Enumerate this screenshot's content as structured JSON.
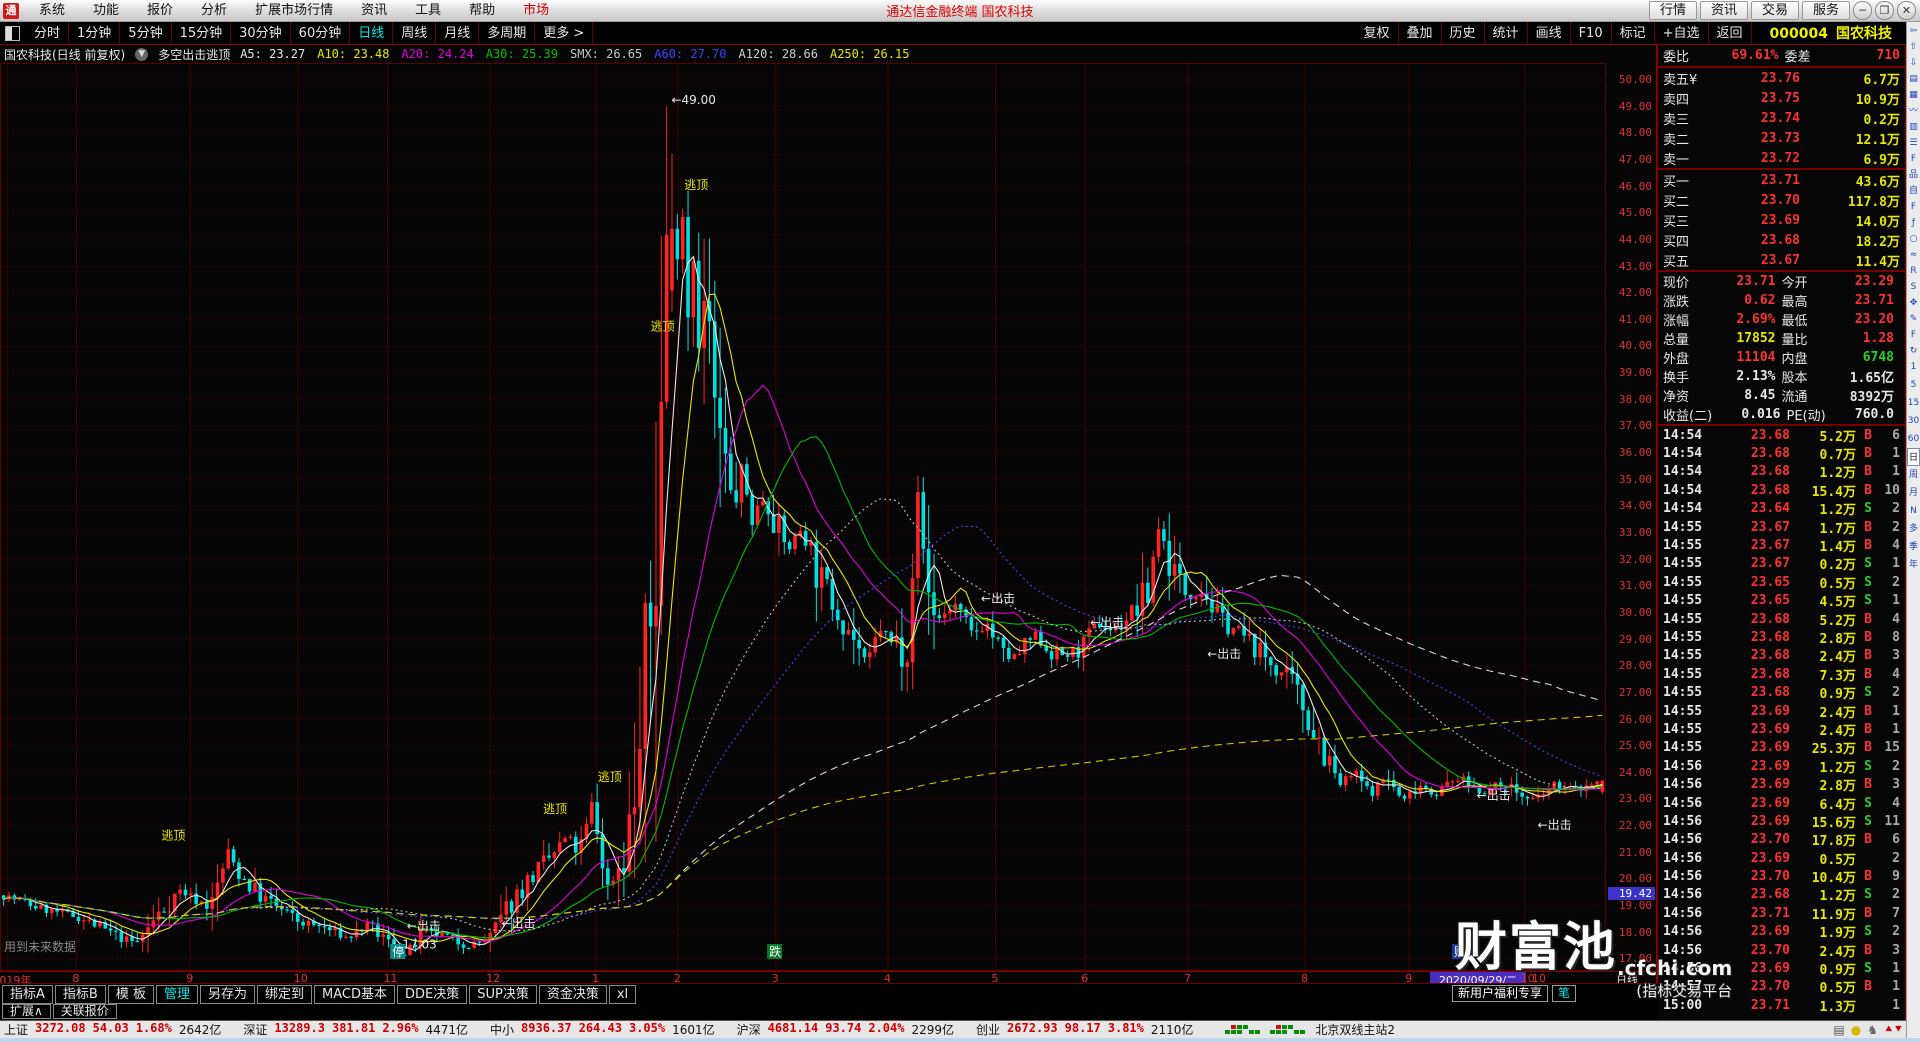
{
  "titlebar": {
    "logo": "通",
    "menus": [
      "系统",
      "功能",
      "报价",
      "分析",
      "扩展市场行情",
      "资讯",
      "工具",
      "帮助"
    ],
    "market_menu": "市场",
    "title": "通达信金融终端 国农科技",
    "right_buttons": [
      "行情",
      "资讯",
      "交易",
      "服务"
    ],
    "window_buttons": [
      "─",
      "❐",
      "✕"
    ]
  },
  "toolbar2": {
    "periods": [
      "分时",
      "1分钟",
      "5分钟",
      "15分钟",
      "30分钟",
      "60分钟",
      "日线",
      "周线",
      "月线",
      "多周期",
      "更多 >"
    ],
    "active_period": "日线",
    "right_items": [
      "复权",
      "叠加",
      "历史",
      "统计",
      "画线",
      "F10",
      "标记",
      "+自选",
      "返回"
    ],
    "stock_code": "000004",
    "stock_name": "国农科技"
  },
  "chart_header": {
    "title": "国农科技(日线 前复权)",
    "indicator_name": "多空出击逃顶",
    "values": [
      {
        "name": "A5",
        "value": "23.27",
        "color": "#e8e8e8"
      },
      {
        "name": "A10",
        "value": "23.48",
        "color": "#e8e800"
      },
      {
        "name": "A20",
        "value": "24.24",
        "color": "#e000e0"
      },
      {
        "name": "A30",
        "value": "25.39",
        "color": "#00c000"
      },
      {
        "name": "SMX",
        "value": "26.65",
        "color": "#c8c8c8"
      },
      {
        "name": "A60",
        "value": "27.70",
        "color": "#4040ff"
      },
      {
        "name": "A120",
        "value": "28.66",
        "color": "#d0d0d0"
      },
      {
        "name": "A250",
        "value": "26.15",
        "color": "#e8e800"
      }
    ]
  },
  "chart_data": {
    "type": "candlestick",
    "title": "国农科技 000004 日线 前复权",
    "ylim": [
      17.0,
      50.0
    ],
    "y_step": 1.0,
    "axis_highlight": "19.42",
    "n_candles": 300,
    "up_color": "#ff2222",
    "down_color": "#00e0e0",
    "months": [
      {
        "label": "2019年",
        "f": 0.004
      },
      {
        "label": "8",
        "f": 0.047
      },
      {
        "label": "9",
        "f": 0.118
      },
      {
        "label": "10",
        "f": 0.185
      },
      {
        "label": "11",
        "f": 0.241
      },
      {
        "label": "12",
        "f": 0.305
      },
      {
        "label": "1",
        "f": 0.371
      },
      {
        "label": "2",
        "f": 0.422
      },
      {
        "label": "3",
        "f": 0.483
      },
      {
        "label": "4",
        "f": 0.553
      },
      {
        "label": "5",
        "f": 0.62
      },
      {
        "label": "6",
        "f": 0.676
      },
      {
        "label": "7",
        "f": 0.74
      },
      {
        "label": "8",
        "f": 0.813
      },
      {
        "label": "9",
        "f": 0.878
      },
      {
        "label": "10",
        "f": 0.95
      }
    ],
    "date_box": "2020/09/29/二",
    "after_date": "10",
    "period_label": "日线",
    "key_prices": {
      "peak": 49.0,
      "low": 17.03,
      "last_close": 23.71,
      "open": 23.29,
      "high": 23.71,
      "low_day": 23.2
    },
    "anchors": [
      [
        0.0,
        19.4
      ],
      [
        0.024,
        18.9
      ],
      [
        0.047,
        18.6
      ],
      [
        0.07,
        17.9
      ],
      [
        0.083,
        17.6
      ],
      [
        0.1,
        18.9
      ],
      [
        0.11,
        19.6
      ],
      [
        0.118,
        19.3
      ],
      [
        0.13,
        19.0
      ],
      [
        0.14,
        21.0
      ],
      [
        0.148,
        20.2
      ],
      [
        0.16,
        19.4
      ],
      [
        0.17,
        19.0
      ],
      [
        0.185,
        18.4
      ],
      [
        0.2,
        18.2
      ],
      [
        0.215,
        17.8
      ],
      [
        0.228,
        18.3
      ],
      [
        0.241,
        17.6
      ],
      [
        0.252,
        17.1
      ],
      [
        0.262,
        18.0
      ],
      [
        0.275,
        17.9
      ],
      [
        0.29,
        17.5
      ],
      [
        0.305,
        17.8
      ],
      [
        0.318,
        19.2
      ],
      [
        0.33,
        20.1
      ],
      [
        0.342,
        20.8
      ],
      [
        0.352,
        21.6
      ],
      [
        0.36,
        21.0
      ],
      [
        0.368,
        22.8
      ],
      [
        0.374,
        21.0
      ],
      [
        0.378,
        19.6
      ],
      [
        0.384,
        20.4
      ],
      [
        0.39,
        21.5
      ],
      [
        0.396,
        23.5
      ],
      [
        0.402,
        27.5
      ],
      [
        0.408,
        33.0
      ],
      [
        0.412,
        38.5
      ],
      [
        0.416,
        44.0
      ],
      [
        0.42,
        43.0
      ],
      [
        0.424,
        45.8
      ],
      [
        0.428,
        41.5
      ],
      [
        0.432,
        44.0
      ],
      [
        0.436,
        39.5
      ],
      [
        0.44,
        42.5
      ],
      [
        0.444,
        37.5
      ],
      [
        0.45,
        36.0
      ],
      [
        0.456,
        34.0
      ],
      [
        0.462,
        35.3
      ],
      [
        0.468,
        33.5
      ],
      [
        0.475,
        34.3
      ],
      [
        0.482,
        33.6
      ],
      [
        0.49,
        32.3
      ],
      [
        0.5,
        33.3
      ],
      [
        0.51,
        31.3
      ],
      [
        0.52,
        30.3
      ],
      [
        0.53,
        29.3
      ],
      [
        0.54,
        28.0
      ],
      [
        0.548,
        29.5
      ],
      [
        0.556,
        28.8
      ],
      [
        0.565,
        29.3
      ],
      [
        0.572,
        34.3
      ],
      [
        0.578,
        30.8
      ],
      [
        0.585,
        29.8
      ],
      [
        0.595,
        30.3
      ],
      [
        0.605,
        29.2
      ],
      [
        0.615,
        29.6
      ],
      [
        0.625,
        28.4
      ],
      [
        0.633,
        28.3
      ],
      [
        0.645,
        29.2
      ],
      [
        0.655,
        28.5
      ],
      [
        0.665,
        28.4
      ],
      [
        0.675,
        28.7
      ],
      [
        0.685,
        29.6
      ],
      [
        0.695,
        29.3
      ],
      [
        0.705,
        30.0
      ],
      [
        0.715,
        30.4
      ],
      [
        0.722,
        33.4
      ],
      [
        0.73,
        31.8
      ],
      [
        0.74,
        30.7
      ],
      [
        0.75,
        30.9
      ],
      [
        0.76,
        29.8
      ],
      [
        0.77,
        29.4
      ],
      [
        0.778,
        29.0
      ],
      [
        0.788,
        28.4
      ],
      [
        0.798,
        27.8
      ],
      [
        0.806,
        27.3
      ],
      [
        0.815,
        26.2
      ],
      [
        0.825,
        25.0
      ],
      [
        0.835,
        23.5
      ],
      [
        0.845,
        24.0
      ],
      [
        0.855,
        23.2
      ],
      [
        0.865,
        23.9
      ],
      [
        0.875,
        22.9
      ],
      [
        0.885,
        23.6
      ],
      [
        0.895,
        23.2
      ],
      [
        0.91,
        23.8
      ],
      [
        0.925,
        23.3
      ],
      [
        0.94,
        23.6
      ],
      [
        0.955,
        22.9
      ],
      [
        0.97,
        23.5
      ],
      [
        0.985,
        23.4
      ],
      [
        1.0,
        23.71
      ]
    ],
    "pins": {
      "peak_f": 0.416,
      "low_f": 0.252
    },
    "mas": [
      {
        "n": 5,
        "color": "#e8e8e8",
        "dash": ""
      },
      {
        "n": 10,
        "color": "#e8e800",
        "dash": ""
      },
      {
        "n": 20,
        "color": "#e000e0",
        "dash": ""
      },
      {
        "n": 30,
        "color": "#00b800",
        "dash": ""
      },
      {
        "n": 45,
        "color": "#c0c0c0",
        "dash": "2 3"
      },
      {
        "n": 60,
        "color": "#4040ff",
        "dash": "2 3"
      },
      {
        "n": 120,
        "color": "#d8d8d8",
        "dash": "7 5"
      },
      {
        "n": 250,
        "color": "#c8c800",
        "dash": "7 5"
      }
    ],
    "annotations": [
      {
        "text": "←49.00",
        "f": 0.418,
        "price": 49.1,
        "color": "#e8e8e8"
      },
      {
        "text": "逃顶",
        "f": 0.426,
        "price": 45.9,
        "color": "#e8e800"
      },
      {
        "text": "逃顶",
        "f": 0.405,
        "price": 40.6,
        "color": "#e8e800"
      },
      {
        "text": "逃顶",
        "f": 0.372,
        "price": 23.7,
        "color": "#e8e800"
      },
      {
        "text": "逃顶",
        "f": 0.338,
        "price": 22.5,
        "color": "#e8e800"
      },
      {
        "text": "逃顶",
        "f": 0.1,
        "price": 21.5,
        "color": "#e8e800"
      },
      {
        "text": "←出击",
        "f": 0.611,
        "price": 30.4,
        "color": "#e8e8e8"
      },
      {
        "text": "←出击",
        "f": 0.679,
        "price": 29.5,
        "color": "#e8e8e8"
      },
      {
        "text": "←出击",
        "f": 0.752,
        "price": 28.3,
        "color": "#e8e8e8"
      },
      {
        "text": "←出击",
        "f": 0.92,
        "price": 23.0,
        "color": "#e8e8e8"
      },
      {
        "text": "←出击",
        "f": 0.958,
        "price": 21.9,
        "color": "#e8e8e8"
      },
      {
        "text": "←出击",
        "f": 0.253,
        "price": 18.1,
        "color": "#e8e8e8"
      },
      {
        "text": "←17.03",
        "f": 0.244,
        "price": 17.4,
        "color": "#e8e8e8"
      },
      {
        "text": "←出击",
        "f": 0.312,
        "price": 18.2,
        "color": "#e8e8e8"
      }
    ],
    "event_markers": [
      {
        "text": "停",
        "f": 0.247,
        "bg": "#0a8a8a"
      },
      {
        "text": "跌",
        "f": 0.482,
        "bg": "#0a7a2a"
      },
      {
        "text": "财",
        "f": 0.909,
        "bg": "#1a3a9a"
      },
      {
        "text": "榜",
        "f": 0.951,
        "bg": "#8a5a0a"
      }
    ],
    "future_note": "用到未来数据",
    "zoom_in": "+",
    "zoom_out": "-"
  },
  "orderbook": {
    "weibi_label": "委比",
    "weibi": "69.61%",
    "weicha_label": "委差",
    "weicha": "710",
    "sells": [
      {
        "label": "卖五¥",
        "price": "23.76",
        "vol": "6.7万"
      },
      {
        "label": "卖四",
        "price": "23.75",
        "vol": "10.9万"
      },
      {
        "label": "卖三",
        "price": "23.74",
        "vol": "0.2万"
      },
      {
        "label": "卖二",
        "price": "23.73",
        "vol": "12.1万"
      },
      {
        "label": "卖一",
        "price": "23.72",
        "vol": "6.9万"
      }
    ],
    "buys": [
      {
        "label": "买一",
        "price": "23.71",
        "vol": "43.6万"
      },
      {
        "label": "买二",
        "price": "23.70",
        "vol": "117.8万"
      },
      {
        "label": "买三",
        "price": "23.69",
        "vol": "14.0万"
      },
      {
        "label": "买四",
        "price": "23.68",
        "vol": "18.2万"
      },
      {
        "label": "买五",
        "price": "23.67",
        "vol": "11.4万"
      }
    ]
  },
  "quote_info": [
    [
      {
        "l": "现价",
        "v": "23.71",
        "c": "red"
      },
      {
        "l": "今开",
        "v": "23.29",
        "c": "red"
      }
    ],
    [
      {
        "l": "涨跌",
        "v": "0.62",
        "c": "red"
      },
      {
        "l": "最高",
        "v": "23.71",
        "c": "red"
      }
    ],
    [
      {
        "l": "涨幅",
        "v": "2.69%",
        "c": "red"
      },
      {
        "l": "最低",
        "v": "23.20",
        "c": "red"
      }
    ],
    [
      {
        "l": "总量",
        "v": "17852",
        "c": "yel"
      },
      {
        "l": "量比",
        "v": "1.28",
        "c": "red"
      }
    ],
    [
      {
        "l": "外盘",
        "v": "11104",
        "c": "red"
      },
      {
        "l": "内盘",
        "v": "6748",
        "c": "grn"
      }
    ],
    [
      {
        "l": "换手",
        "v": "2.13%",
        "c": "wht"
      },
      {
        "l": "股本",
        "v": "1.65亿",
        "c": "wht"
      }
    ],
    [
      {
        "l": "净资",
        "v": "8.45",
        "c": "wht"
      },
      {
        "l": "流通",
        "v": "8392万",
        "c": "wht"
      }
    ],
    [
      {
        "l": "收益(二)",
        "v": "0.016",
        "c": "wht"
      },
      {
        "l": "PE(动)",
        "v": "760.0",
        "c": "wht"
      }
    ]
  ],
  "trades": [
    [
      "14:54",
      "23.68",
      "5.2万",
      "B",
      "6"
    ],
    [
      "14:54",
      "23.68",
      "0.7万",
      "B",
      "1"
    ],
    [
      "14:54",
      "23.68",
      "1.2万",
      "B",
      "1"
    ],
    [
      "14:54",
      "23.68",
      "15.4万",
      "B",
      "10"
    ],
    [
      "14:54",
      "23.64",
      "1.2万",
      "S",
      "2"
    ],
    [
      "14:55",
      "23.67",
      "1.7万",
      "B",
      "2"
    ],
    [
      "14:55",
      "23.67",
      "1.4万",
      "B",
      "4"
    ],
    [
      "14:55",
      "23.67",
      "0.2万",
      "S",
      "1"
    ],
    [
      "14:55",
      "23.65",
      "0.5万",
      "S",
      "2"
    ],
    [
      "14:55",
      "23.65",
      "4.5万",
      "S",
      "1"
    ],
    [
      "14:55",
      "23.68",
      "5.2万",
      "B",
      "4"
    ],
    [
      "14:55",
      "23.68",
      "2.8万",
      "B",
      "8"
    ],
    [
      "14:55",
      "23.68",
      "2.4万",
      "B",
      "3"
    ],
    [
      "14:55",
      "23.68",
      "7.3万",
      "B",
      "4"
    ],
    [
      "14:55",
      "23.68",
      "0.9万",
      "S",
      "2"
    ],
    [
      "14:55",
      "23.69",
      "2.4万",
      "B",
      "1"
    ],
    [
      "14:55",
      "23.69",
      "2.4万",
      "B",
      "1"
    ],
    [
      "14:55",
      "23.69",
      "25.3万",
      "B",
      "15"
    ],
    [
      "14:56",
      "23.69",
      "1.2万",
      "S",
      "2"
    ],
    [
      "14:56",
      "23.69",
      "2.8万",
      "B",
      "3"
    ],
    [
      "14:56",
      "23.69",
      "6.4万",
      "S",
      "4"
    ],
    [
      "14:56",
      "23.69",
      "15.6万",
      "S",
      "11"
    ],
    [
      "14:56",
      "23.70",
      "17.8万",
      "B",
      "6"
    ],
    [
      "14:56",
      "23.69",
      "0.5万",
      "",
      "2"
    ],
    [
      "14:56",
      "23.70",
      "10.4万",
      "B",
      "9"
    ],
    [
      "14:56",
      "23.68",
      "1.2万",
      "S",
      "2"
    ],
    [
      "14:56",
      "23.71",
      "11.9万",
      "B",
      "7"
    ],
    [
      "14:56",
      "23.69",
      "1.9万",
      "S",
      "2"
    ],
    [
      "14:56",
      "23.70",
      "2.4万",
      "B",
      "3"
    ],
    [
      "14:56",
      "23.69",
      "0.9万",
      "S",
      "1"
    ],
    [
      "14:57",
      "23.70",
      "0.5万",
      "B",
      "1"
    ],
    [
      "15:00",
      "23.71",
      "1.3万",
      "",
      "1"
    ]
  ],
  "bottom_tabs": {
    "row1": [
      "指标A",
      "指标B",
      "模 板",
      "管理",
      "另存为",
      "绑定到",
      "MACD基本",
      "DDE决策",
      "SUP决策",
      "资金决策",
      "xl"
    ],
    "active1": "管理",
    "row2": [
      "扩展∧",
      "关联报价"
    ],
    "promo": "新用户福利专享",
    "promo_tab": "笔"
  },
  "statusbar": {
    "indices": [
      {
        "name": "上证",
        "value": "3272.08",
        "change": "54.03",
        "pct": "1.68%",
        "amount": "2642亿"
      },
      {
        "name": "深证",
        "value": "13289.3",
        "change": "381.81",
        "pct": "2.96%",
        "amount": "4471亿"
      },
      {
        "name": "中小",
        "value": "8936.37",
        "change": "264.43",
        "pct": "3.05%",
        "amount": "1601亿"
      },
      {
        "name": "沪深",
        "value": "4681.14",
        "change": "93.74",
        "pct": "2.04%",
        "amount": "2299亿"
      },
      {
        "name": "创业",
        "value": "2672.93",
        "change": "98.17",
        "pct": "3.81%",
        "amount": "2110亿"
      }
    ],
    "server": "北京双线主站2",
    "right_icons": [
      "list-icon",
      "coin-icon",
      "bell-icon",
      "updown-icon",
      "alert-icon"
    ]
  },
  "right_strip": {
    "icons_top": [
      "⇦",
      "⇧",
      "⇩",
      "▤",
      "▦",
      "〰",
      "▥",
      "☰",
      "F",
      "品",
      "自"
    ],
    "icons_mid": [
      "F",
      "ƒ",
      "○",
      "≈",
      "R",
      "S",
      "✥",
      "✎",
      "F",
      "↻"
    ],
    "periods": [
      "1",
      "5",
      "15",
      "30",
      "60",
      "日",
      "周",
      "月",
      "N",
      "多",
      "季",
      "年"
    ],
    "active_period": "日"
  },
  "watermark": {
    "big": "财富池",
    "site": ".cfchi.com",
    "sub": "(指标交易平台"
  }
}
